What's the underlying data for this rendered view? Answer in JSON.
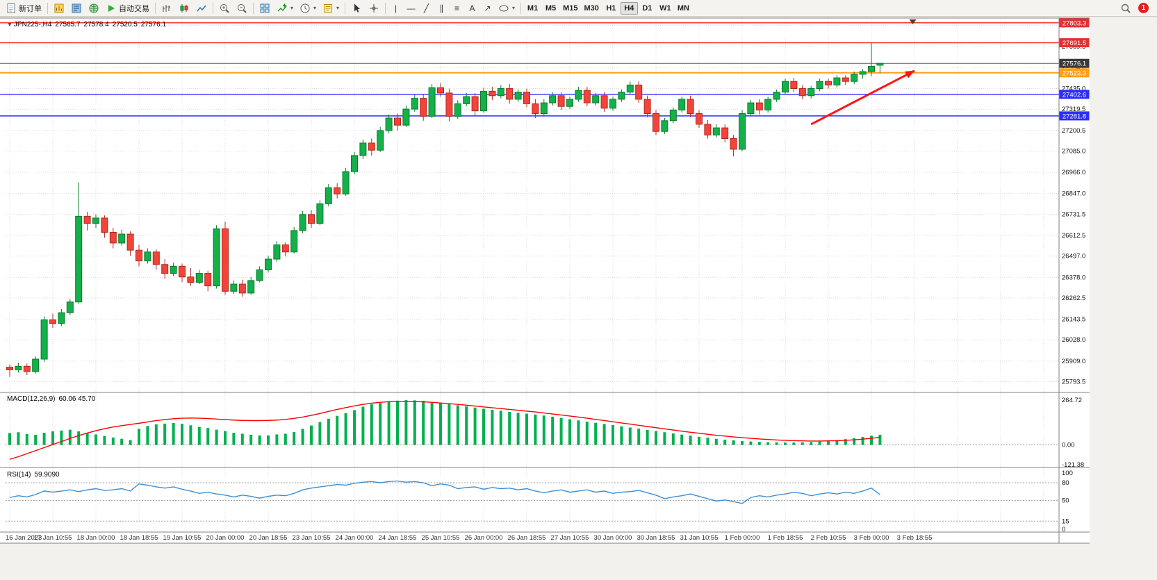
{
  "toolbar": {
    "new_order_label": "新订单",
    "autotrading_label": "自动交易",
    "timeframes": [
      "M1",
      "M5",
      "M15",
      "M30",
      "H1",
      "H4",
      "D1",
      "W1",
      "MN"
    ],
    "active_timeframe": "H4",
    "notification_count": "1",
    "tool_glyphs": {
      "vertical_line": "|",
      "horizontal_line": "—",
      "trendline": "╱",
      "channel": "∥",
      "fibonacci": "≡",
      "text": "A",
      "arrow": "↗",
      "dropdown": "▾"
    }
  },
  "chart": {
    "symbol_label": "JPN225-,H4",
    "ohlc": {
      "open": "27565.7",
      "high": "27578.4",
      "low": "27520.5",
      "close": "27576.1"
    },
    "collapse_glyph": "▼",
    "price_axis_labels": [
      "27788.5",
      "27669.5",
      "27554.0",
      "27435.0",
      "27319.5",
      "27200.5",
      "27085.0",
      "26966.0",
      "26847.0",
      "26731.5",
      "26612.5",
      "26497.0",
      "26378.0",
      "26262.5",
      "26143.5",
      "26028.0",
      "25909.0",
      "25793.5"
    ],
    "price_badges": [
      {
        "price": 27803.3,
        "label": "27803.3",
        "color": "#e03232",
        "text": "#ffffff"
      },
      {
        "price": 27691.5,
        "label": "27691.5",
        "color": "#e03232",
        "text": "#ffffff"
      },
      {
        "price": 27576.1,
        "label": "27576.1",
        "color": "#3a3a3a",
        "text": "#ffffff"
      },
      {
        "price": 27523.3,
        "label": "27523.3",
        "color": "#ff9f1a",
        "text": "#ffffff"
      },
      {
        "price": 27402.6,
        "label": "27402.6",
        "color": "#2d2dff",
        "text": "#ffffff"
      },
      {
        "price": 27281.8,
        "label": "27281.8",
        "color": "#2d2dff",
        "text": "#ffffff"
      }
    ],
    "hlines": [
      {
        "price": 27803.3,
        "color": "#ff2020",
        "width": 1.4
      },
      {
        "price": 27691.5,
        "color": "#ff2020",
        "width": 1.4
      },
      {
        "price": 27576.1,
        "color": "#5a5a5a",
        "width": 1
      },
      {
        "price": 27523.3,
        "color": "#ffa01e",
        "width": 2
      },
      {
        "price": 27402.6,
        "color": "#2d2dff",
        "width": 1.4
      },
      {
        "price": 27281.8,
        "color": "#2d2dff",
        "width": 1.4
      }
    ]
  },
  "indicators": {
    "macd": {
      "name": "MACD(12,26,9)",
      "values": "60.06 45.70",
      "axis_labels": [
        "264.72",
        "0.00",
        "-121.38"
      ]
    },
    "rsi": {
      "name": "RSI(14)",
      "values": "59.9090",
      "axis_labels": [
        "100",
        "80",
        "50",
        "15",
        "0"
      ],
      "levels": [
        80,
        50,
        15
      ]
    }
  },
  "colors": {
    "bull": "#14b04a",
    "bear": "#f2443a",
    "bull_stroke": "#0a7a2c",
    "bear_stroke": "#b1281e",
    "macd_hist": "#00b050",
    "macd_signal": "#ff0000",
    "rsi": "#3b8fd4",
    "grid": "#dcdcdc",
    "panel_border": "#808080",
    "accent_orange": "#ffa01e",
    "accent_blue": "#2d2dff",
    "accent_red": "#ff2020"
  },
  "chart_data": {
    "type": "candlestick",
    "symbol": "JPN225-",
    "timeframe": "H4",
    "title": "JPN225-,H4 27565.7 27578.4 27520.5 27576.1",
    "x_labels": [
      "16 Jan 2023",
      "17 Jan 10:55",
      "18 Jan 00:00",
      "18 Jan 18:55",
      "19 Jan 10:55",
      "20 Jan 00:00",
      "20 Jan 18:55",
      "23 Jan 10:55",
      "24 Jan 00:00",
      "24 Jan 18:55",
      "25 Jan 10:55",
      "26 Jan 00:00",
      "26 Jan 18:55",
      "27 Jan 10:55",
      "30 Jan 00:00",
      "30 Jan 18:55",
      "31 Jan 10:55",
      "1 Feb 00:00",
      "1 Feb 18:55",
      "2 Feb 10:55",
      "3 Feb 00:00",
      "3 Feb 18:55"
    ],
    "x_label_step_candles": 5,
    "main_ylim": [
      25745,
      27822
    ],
    "candles": [
      [
        25875,
        25890,
        25820,
        25860
      ],
      [
        25860,
        25900,
        25845,
        25880
      ],
      [
        25880,
        25895,
        25830,
        25850
      ],
      [
        25850,
        25935,
        25838,
        25920
      ],
      [
        25920,
        26160,
        25905,
        26140
      ],
      [
        26140,
        26175,
        26095,
        26120
      ],
      [
        26120,
        26200,
        26105,
        26180
      ],
      [
        26180,
        26255,
        26165,
        26240
      ],
      [
        26240,
        26910,
        26230,
        26720
      ],
      [
        26720,
        26745,
        26640,
        26680
      ],
      [
        26680,
        26730,
        26655,
        26710
      ],
      [
        26710,
        26725,
        26600,
        26630
      ],
      [
        26630,
        26655,
        26540,
        26570
      ],
      [
        26570,
        26645,
        26555,
        26620
      ],
      [
        26620,
        26635,
        26500,
        26530
      ],
      [
        26530,
        26560,
        26440,
        26470
      ],
      [
        26470,
        26540,
        26455,
        26520
      ],
      [
        26520,
        26535,
        26420,
        26450
      ],
      [
        26450,
        26480,
        26370,
        26400
      ],
      [
        26400,
        26460,
        26385,
        26440
      ],
      [
        26440,
        26455,
        26350,
        26380
      ],
      [
        26380,
        26430,
        26330,
        26350
      ],
      [
        26350,
        26420,
        26340,
        26400
      ],
      [
        26400,
        26415,
        26300,
        26330
      ],
      [
        26330,
        26670,
        26315,
        26650
      ],
      [
        26650,
        26690,
        26280,
        26300
      ],
      [
        26300,
        26360,
        26285,
        26340
      ],
      [
        26340,
        26365,
        26270,
        26290
      ],
      [
        26290,
        26380,
        26280,
        26360
      ],
      [
        26360,
        26440,
        26350,
        26420
      ],
      [
        26420,
        26500,
        26405,
        26480
      ],
      [
        26480,
        26580,
        26465,
        26560
      ],
      [
        26560,
        26575,
        26495,
        26520
      ],
      [
        26520,
        26660,
        26510,
        26640
      ],
      [
        26640,
        26750,
        26625,
        26730
      ],
      [
        26730,
        26755,
        26655,
        26680
      ],
      [
        26680,
        26810,
        26670,
        26790
      ],
      [
        26790,
        26900,
        26775,
        26880
      ],
      [
        26880,
        26905,
        26820,
        26845
      ],
      [
        26845,
        26990,
        26835,
        26970
      ],
      [
        26970,
        27080,
        26955,
        27060
      ],
      [
        27060,
        27150,
        27040,
        27130
      ],
      [
        27130,
        27155,
        27060,
        27090
      ],
      [
        27090,
        27220,
        27080,
        27200
      ],
      [
        27200,
        27290,
        27185,
        27270
      ],
      [
        27270,
        27295,
        27200,
        27230
      ],
      [
        27230,
        27340,
        27220,
        27320
      ],
      [
        27320,
        27400,
        27305,
        27380
      ],
      [
        27380,
        27405,
        27255,
        27280
      ],
      [
        27280,
        27460,
        27270,
        27440
      ],
      [
        27440,
        27465,
        27390,
        27410
      ],
      [
        27410,
        27435,
        27250,
        27280
      ],
      [
        27280,
        27370,
        27265,
        27350
      ],
      [
        27350,
        27410,
        27335,
        27390
      ],
      [
        27390,
        27410,
        27285,
        27310
      ],
      [
        27310,
        27440,
        27300,
        27420
      ],
      [
        27420,
        27445,
        27370,
        27395
      ],
      [
        27395,
        27455,
        27380,
        27435
      ],
      [
        27435,
        27460,
        27350,
        27375
      ],
      [
        27375,
        27430,
        27360,
        27415
      ],
      [
        27415,
        27435,
        27330,
        27350
      ],
      [
        27350,
        27375,
        27270,
        27295
      ],
      [
        27295,
        27375,
        27285,
        27355
      ],
      [
        27355,
        27415,
        27340,
        27395
      ],
      [
        27395,
        27415,
        27315,
        27335
      ],
      [
        27335,
        27390,
        27320,
        27375
      ],
      [
        27375,
        27445,
        27360,
        27425
      ],
      [
        27425,
        27445,
        27335,
        27355
      ],
      [
        27355,
        27410,
        27340,
        27395
      ],
      [
        27395,
        27415,
        27305,
        27325
      ],
      [
        27325,
        27390,
        27310,
        27375
      ],
      [
        27375,
        27430,
        27360,
        27415
      ],
      [
        27415,
        27475,
        27400,
        27455
      ],
      [
        27455,
        27475,
        27355,
        27375
      ],
      [
        27375,
        27395,
        27275,
        27295
      ],
      [
        27295,
        27315,
        27175,
        27195
      ],
      [
        27195,
        27270,
        27180,
        27255
      ],
      [
        27255,
        27330,
        27240,
        27315
      ],
      [
        27315,
        27390,
        27300,
        27375
      ],
      [
        27375,
        27395,
        27275,
        27295
      ],
      [
        27295,
        27315,
        27215,
        27235
      ],
      [
        27235,
        27260,
        27155,
        27175
      ],
      [
        27175,
        27235,
        27160,
        27215
      ],
      [
        27215,
        27235,
        27135,
        27155
      ],
      [
        27155,
        27175,
        27055,
        27095
      ],
      [
        27095,
        27315,
        27085,
        27295
      ],
      [
        27295,
        27370,
        27280,
        27355
      ],
      [
        27355,
        27375,
        27290,
        27315
      ],
      [
        27315,
        27390,
        27300,
        27375
      ],
      [
        27375,
        27430,
        27360,
        27415
      ],
      [
        27415,
        27490,
        27400,
        27475
      ],
      [
        27475,
        27495,
        27415,
        27435
      ],
      [
        27435,
        27455,
        27375,
        27395
      ],
      [
        27395,
        27450,
        27380,
        27435
      ],
      [
        27435,
        27490,
        27420,
        27475
      ],
      [
        27475,
        27490,
        27435,
        27455
      ],
      [
        27455,
        27510,
        27440,
        27495
      ],
      [
        27495,
        27510,
        27455,
        27475
      ],
      [
        27475,
        27530,
        27460,
        27515
      ],
      [
        27515,
        27545,
        27490,
        27530
      ],
      [
        27530,
        27691,
        27505,
        27560
      ],
      [
        27565.7,
        27578.4,
        27520.5,
        27576.1
      ]
    ],
    "macd": {
      "ylim": [
        -121.38,
        290
      ],
      "histogram": [
        70,
        75,
        65,
        60,
        72,
        80,
        85,
        90,
        80,
        72,
        62,
        52,
        44,
        36,
        28,
        95,
        112,
        122,
        126,
        130,
        125,
        116,
        106,
        100,
        90,
        82,
        72,
        66,
        60,
        56,
        56,
        62,
        66,
        76,
        95,
        115,
        135,
        155,
        172,
        188,
        206,
        226,
        240,
        250,
        258,
        262,
        265,
        264,
        261,
        255,
        249,
        243,
        235,
        228,
        221,
        214,
        208,
        202,
        196,
        190,
        185,
        180,
        174,
        167,
        160,
        152,
        145,
        138,
        131,
        124,
        117,
        110,
        103,
        96,
        89,
        82,
        75,
        68,
        61,
        55,
        48,
        42,
        36,
        31,
        27,
        23,
        20,
        18,
        16,
        15,
        14,
        14,
        15,
        17,
        20,
        24,
        28,
        34,
        40,
        47,
        54,
        60.06
      ],
      "signal": [
        -85,
        -70,
        -52,
        -34,
        -16,
        2,
        20,
        38,
        55,
        70,
        84,
        96,
        106,
        114,
        121,
        128,
        136,
        144,
        150,
        155,
        158,
        159,
        158,
        156,
        153,
        150,
        147,
        145,
        144,
        144,
        145,
        147,
        151,
        157,
        165,
        175,
        186,
        198,
        210,
        221,
        231,
        240,
        247,
        252,
        256,
        258,
        258,
        257,
        255,
        252,
        248,
        244,
        240,
        235,
        230,
        225,
        220,
        215,
        210,
        205,
        200,
        195,
        189,
        183,
        177,
        171,
        165,
        158,
        151,
        144,
        137,
        130,
        123,
        116,
        109,
        102,
        95,
        88,
        81,
        75,
        69,
        63,
        57,
        52,
        47,
        43,
        39,
        35,
        32,
        29,
        27,
        25,
        24,
        23,
        23,
        24,
        25,
        27,
        30,
        34,
        39,
        45.7
      ]
    },
    "rsi": {
      "ylim": [
        0,
        100
      ],
      "values": [
        55,
        58,
        56,
        60,
        66,
        64,
        66,
        68,
        65,
        68,
        70,
        67,
        68,
        70,
        66,
        78,
        76,
        73,
        71,
        73,
        69,
        66,
        62,
        64,
        61,
        59,
        56,
        59,
        57,
        54,
        57,
        59,
        58,
        62,
        68,
        71,
        73,
        75,
        77,
        76,
        79,
        81,
        82,
        80,
        82,
        83,
        81,
        82,
        80,
        75,
        78,
        76,
        70,
        72,
        73,
        69,
        72,
        70,
        71,
        68,
        70,
        66,
        63,
        66,
        68,
        64,
        66,
        68,
        64,
        66,
        62,
        64,
        65,
        67,
        63,
        59,
        53,
        56,
        58,
        61,
        57,
        53,
        49,
        51,
        48,
        45,
        55,
        58,
        56,
        59,
        61,
        64,
        62,
        58,
        61,
        63,
        61,
        64,
        62,
        66,
        71,
        59.9
      ]
    },
    "annotation_arrow": {
      "from_index": 93,
      "from_price": 27235,
      "to_index": 105,
      "to_price": 27535,
      "color": "#ff1414"
    },
    "shift_marker_index": 104.8
  }
}
